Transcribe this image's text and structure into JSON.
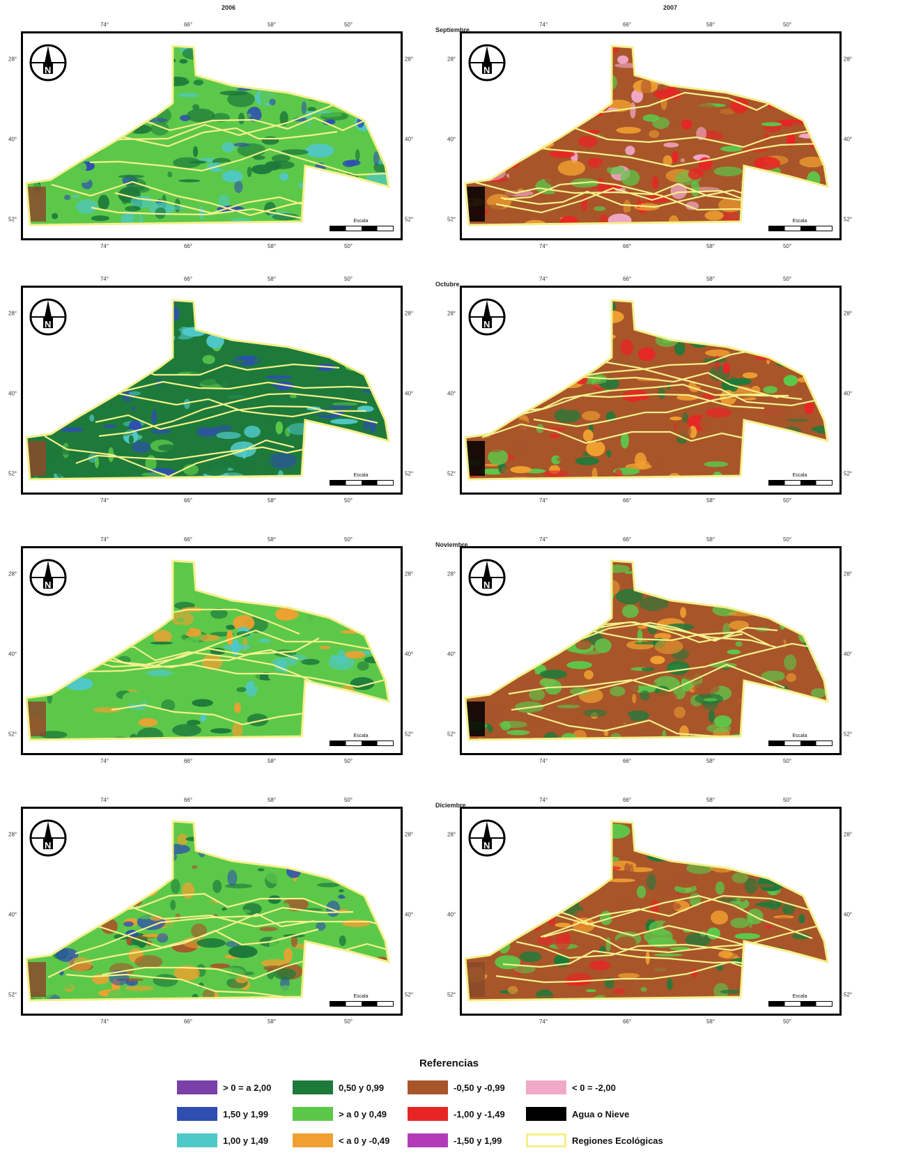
{
  "columns": [
    {
      "year": "2006"
    },
    {
      "year": "2007"
    }
  ],
  "months": [
    {
      "label": "Septiembre"
    },
    {
      "label": "Octubre"
    },
    {
      "label": "Noviembre"
    },
    {
      "label": "Diciembre"
    }
  ],
  "axis": {
    "top_ticks": [
      "74°",
      "66°",
      "58°",
      "50°"
    ],
    "left_ticks": [
      "28°",
      "40°",
      "52°"
    ]
  },
  "scale": {
    "title": "Escala"
  },
  "north_label": "N",
  "legend": {
    "title": "Referencias",
    "items": [
      {
        "label": "> 0 = a 2,00",
        "color": "#7b3fa8"
      },
      {
        "label": "0,50 y 0,99",
        "color": "#1d7a3a"
      },
      {
        "label": "-0,50 y -0,99",
        "color": "#a8552a"
      },
      {
        "label": "< 0 = -2,00",
        "color": "#f2a9c8"
      },
      {
        "label": "1,50 y 1,99",
        "color": "#2e4fb0"
      },
      {
        "label": "> a 0 y 0,49",
        "color": "#5cc84a"
      },
      {
        "label": "-1,00 y -1,49",
        "color": "#e82525"
      },
      {
        "label": "Agua o Nieve",
        "color": "#000000"
      },
      {
        "label": "1,00 y 1,49",
        "color": "#4fc8c8"
      },
      {
        "label": "< a 0 y -0,49",
        "color": "#f0a030"
      },
      {
        "label": "-1,50 y 1,99",
        "color": "#b23cb8"
      },
      {
        "label": "Regiones Ecológicas",
        "color": "#f4f08a"
      }
    ]
  }
}
